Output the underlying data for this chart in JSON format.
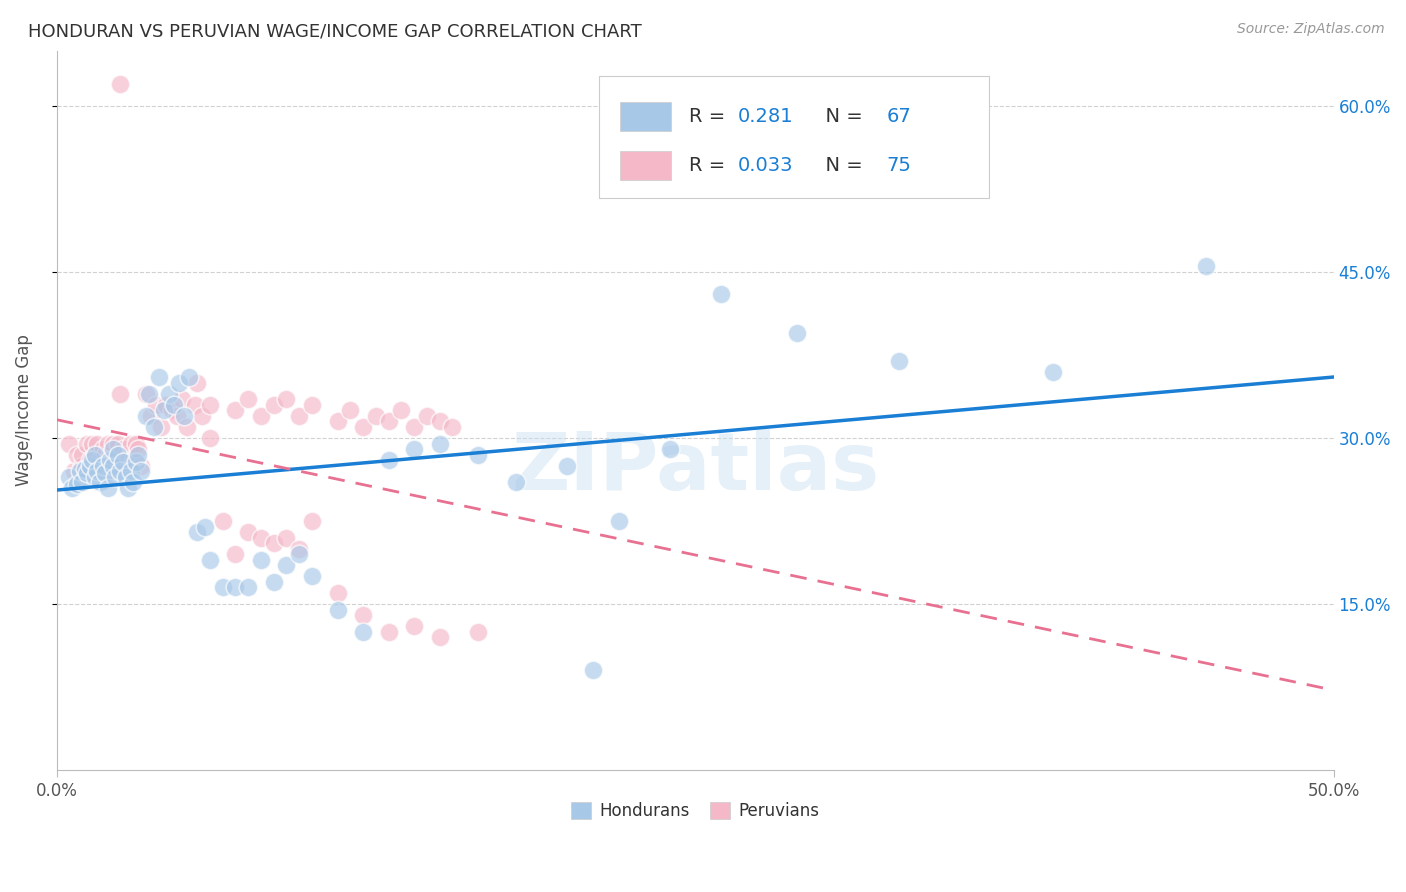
{
  "title": "HONDURAN VS PERUVIAN WAGE/INCOME GAP CORRELATION CHART",
  "source": "Source: ZipAtlas.com",
  "ylabel": "Wage/Income Gap",
  "xlim": [
    0.0,
    0.5
  ],
  "ylim": [
    0.0,
    0.65
  ],
  "yticks": [
    0.15,
    0.3,
    0.45,
    0.6
  ],
  "ytick_labels": [
    "15.0%",
    "30.0%",
    "45.0%",
    "60.0%"
  ],
  "xtick_labels_edge": [
    "0.0%",
    "50.0%"
  ],
  "honduran_R": 0.281,
  "honduran_N": 67,
  "peruvian_R": 0.033,
  "peruvian_N": 75,
  "watermark": "ZIPatlas",
  "blue_color": "#a8c8e8",
  "pink_color": "#f4b8c8",
  "blue_line_color": "#1a7fd4",
  "pink_line_color": "#e87090",
  "legend_text_color": "#1a7fd4",
  "background_color": "#ffffff",
  "grid_color": "#cccccc",
  "hon_x": [
    0.005,
    0.006,
    0.008,
    0.009,
    0.01,
    0.011,
    0.012,
    0.013,
    0.014,
    0.015,
    0.015,
    0.016,
    0.017,
    0.018,
    0.019,
    0.02,
    0.021,
    0.022,
    0.022,
    0.023,
    0.024,
    0.025,
    0.026,
    0.027,
    0.028,
    0.029,
    0.03,
    0.031,
    0.032,
    0.033,
    0.035,
    0.036,
    0.038,
    0.04,
    0.042,
    0.044,
    0.046,
    0.048,
    0.05,
    0.052,
    0.055,
    0.058,
    0.06,
    0.065,
    0.07,
    0.075,
    0.08,
    0.085,
    0.09,
    0.095,
    0.1,
    0.11,
    0.12,
    0.13,
    0.14,
    0.15,
    0.165,
    0.18,
    0.2,
    0.21,
    0.22,
    0.24,
    0.26,
    0.29,
    0.33,
    0.39,
    0.45
  ],
  "hon_y": [
    0.265,
    0.255,
    0.258,
    0.27,
    0.26,
    0.272,
    0.268,
    0.275,
    0.28,
    0.265,
    0.285,
    0.27,
    0.26,
    0.275,
    0.268,
    0.255,
    0.28,
    0.275,
    0.29,
    0.265,
    0.285,
    0.27,
    0.278,
    0.265,
    0.255,
    0.27,
    0.26,
    0.278,
    0.285,
    0.27,
    0.32,
    0.34,
    0.31,
    0.355,
    0.325,
    0.34,
    0.33,
    0.35,
    0.32,
    0.355,
    0.215,
    0.22,
    0.19,
    0.165,
    0.165,
    0.165,
    0.19,
    0.17,
    0.185,
    0.195,
    0.175,
    0.145,
    0.125,
    0.28,
    0.29,
    0.295,
    0.285,
    0.26,
    0.275,
    0.09,
    0.225,
    0.29,
    0.43,
    0.395,
    0.37,
    0.36,
    0.455
  ],
  "per_x": [
    0.005,
    0.007,
    0.008,
    0.01,
    0.01,
    0.012,
    0.013,
    0.014,
    0.015,
    0.016,
    0.017,
    0.018,
    0.019,
    0.02,
    0.02,
    0.021,
    0.022,
    0.023,
    0.024,
    0.025,
    0.026,
    0.027,
    0.028,
    0.029,
    0.03,
    0.031,
    0.032,
    0.033,
    0.035,
    0.037,
    0.039,
    0.041,
    0.043,
    0.045,
    0.047,
    0.049,
    0.051,
    0.054,
    0.057,
    0.06,
    0.065,
    0.07,
    0.075,
    0.08,
    0.085,
    0.09,
    0.095,
    0.1,
    0.11,
    0.12,
    0.13,
    0.14,
    0.15,
    0.165,
    0.025,
    0.055,
    0.06,
    0.07,
    0.075,
    0.08,
    0.085,
    0.09,
    0.095,
    0.1,
    0.11,
    0.115,
    0.12,
    0.125,
    0.13,
    0.135,
    0.14,
    0.145,
    0.15,
    0.155,
    0.025
  ],
  "per_y": [
    0.295,
    0.27,
    0.285,
    0.275,
    0.285,
    0.295,
    0.28,
    0.295,
    0.285,
    0.295,
    0.28,
    0.29,
    0.285,
    0.27,
    0.295,
    0.285,
    0.295,
    0.28,
    0.295,
    0.275,
    0.29,
    0.285,
    0.28,
    0.295,
    0.28,
    0.295,
    0.29,
    0.275,
    0.34,
    0.32,
    0.33,
    0.31,
    0.33,
    0.325,
    0.32,
    0.335,
    0.31,
    0.33,
    0.32,
    0.3,
    0.225,
    0.195,
    0.215,
    0.21,
    0.205,
    0.21,
    0.2,
    0.225,
    0.16,
    0.14,
    0.125,
    0.13,
    0.12,
    0.125,
    0.34,
    0.35,
    0.33,
    0.325,
    0.335,
    0.32,
    0.33,
    0.335,
    0.32,
    0.33,
    0.315,
    0.325,
    0.31,
    0.32,
    0.315,
    0.325,
    0.31,
    0.32,
    0.315,
    0.31,
    0.62
  ]
}
